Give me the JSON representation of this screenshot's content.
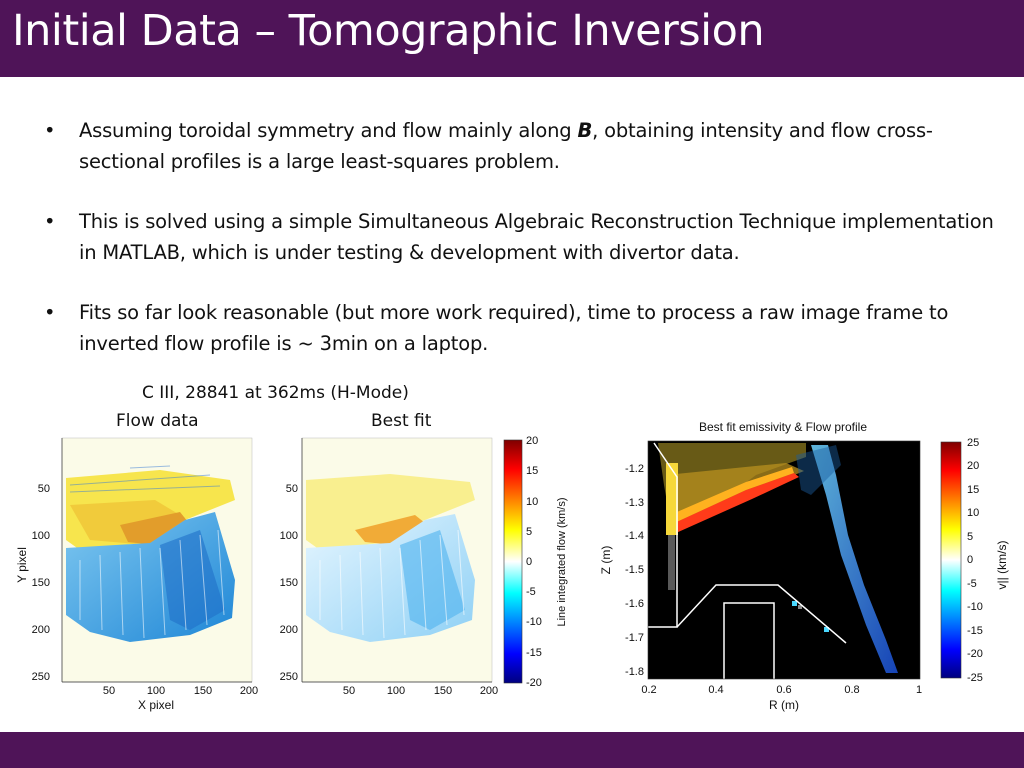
{
  "title": "Initial Data – Tomographic Inversion",
  "bullets": [
    {
      "marker": "•",
      "parts": [
        "Assuming toroidal symmetry and flow mainly along ",
        "B",
        ", obtaining intensity and flow cross-sectional profiles is a large least-squares problem."
      ]
    },
    {
      "marker": "•",
      "text": "This is solved using a simple Simultaneous Algebraic Reconstruction Technique implementation in MATLAB, which  is under testing & development with divertor data."
    },
    {
      "marker": "•",
      "text": "Fits so far look reasonable (but more work required), time to process a raw image frame to inverted flow profile is ~ 3min on a laptop."
    }
  ],
  "captions": {
    "shot": "C III, 28841 at 362ms (H-Mode)",
    "flow_data": "Flow data",
    "best_fit": "Best fit"
  },
  "colors": {
    "header": "#4f1458",
    "image_bg": "#fbfbe8",
    "plot_bg": "#000000"
  },
  "left_figure": {
    "xlabel": "X pixel",
    "ylabel": "Y pixel",
    "xticks": [
      "50",
      "100",
      "150",
      "200"
    ],
    "yticks": [
      "50",
      "100",
      "150",
      "200",
      "250"
    ],
    "xticks_right": [
      "50",
      "100",
      "150",
      "200"
    ],
    "yticks_right": [
      "50",
      "100",
      "150",
      "200",
      "250"
    ],
    "colorbar_label": "Line integrated flow (km/s)",
    "colorbar_ticks": [
      "20",
      "15",
      "10",
      "5",
      "0",
      "-5",
      "-10",
      "-15",
      "-20"
    ]
  },
  "right_figure": {
    "title": "Best fit emissivity & Flow profile",
    "xlabel": "R (m)",
    "ylabel": "Z (m)",
    "xticks": [
      "0.2",
      "0.4",
      "0.6",
      "0.8",
      "1"
    ],
    "yticks": [
      "-1.2",
      "-1.3",
      "-1.4",
      "-1.5",
      "-1.6",
      "-1.7",
      "-1.8"
    ],
    "colorbar_label": "v|| (km/s)",
    "colorbar_ticks": [
      "25",
      "20",
      "15",
      "10",
      "5",
      "0",
      "-5",
      "-10",
      "-15",
      "-20",
      "-25"
    ]
  }
}
